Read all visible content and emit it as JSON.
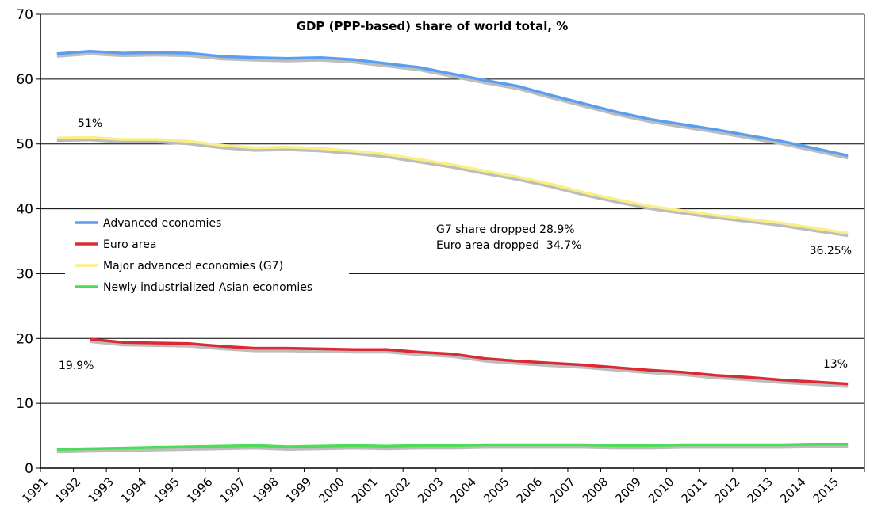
{
  "chart_data": {
    "type": "line",
    "title": "GDP (PPP-based) share of world total, %",
    "xlabel": "",
    "ylabel": "",
    "ylim": [
      0,
      70
    ],
    "yticks": [
      0,
      10,
      20,
      30,
      40,
      50,
      60,
      70
    ],
    "grid": true,
    "legend_position": "left-middle",
    "categories": [
      "1991",
      "1992",
      "1993",
      "1994",
      "1995",
      "1996",
      "1997",
      "1998",
      "1999",
      "2000",
      "2001",
      "2002",
      "2003",
      "2004",
      "2005",
      "2006",
      "2007",
      "2008",
      "2009",
      "2010",
      "2011",
      "2012",
      "2013",
      "2014",
      "2015"
    ],
    "series": [
      {
        "name": "Advanced economies",
        "color": "#5b9ef0",
        "values": [
          63.9,
          64.3,
          64.0,
          64.1,
          64.0,
          63.5,
          63.3,
          63.2,
          63.3,
          63.0,
          62.4,
          61.8,
          60.8,
          59.8,
          58.9,
          57.5,
          56.2,
          54.9,
          53.8,
          53.0,
          52.2,
          51.3,
          50.4,
          49.3,
          48.2
        ]
      },
      {
        "name": "Euro area",
        "color": "#dc2a35",
        "values": [
          null,
          19.9,
          19.4,
          19.3,
          19.2,
          18.8,
          18.5,
          18.5,
          18.4,
          18.3,
          18.3,
          17.9,
          17.6,
          16.9,
          16.5,
          16.2,
          15.9,
          15.5,
          15.1,
          14.8,
          14.3,
          14.0,
          13.6,
          13.3,
          13.0
        ]
      },
      {
        "name": "Major advanced economies (G7)",
        "color": "#fbee84",
        "values": [
          50.9,
          51.0,
          50.7,
          50.7,
          50.4,
          49.8,
          49.4,
          49.5,
          49.3,
          48.9,
          48.4,
          47.6,
          46.8,
          45.8,
          44.9,
          43.8,
          42.5,
          41.4,
          40.4,
          39.7,
          39.0,
          38.4,
          37.8,
          37.0,
          36.25
        ]
      },
      {
        "name": "Newly industrialized Asian economies",
        "color": "#4ddc55",
        "values": [
          2.9,
          3.0,
          3.1,
          3.2,
          3.3,
          3.4,
          3.5,
          3.3,
          3.4,
          3.5,
          3.4,
          3.5,
          3.5,
          3.6,
          3.6,
          3.6,
          3.6,
          3.5,
          3.5,
          3.6,
          3.6,
          3.6,
          3.6,
          3.7,
          3.7
        ]
      }
    ],
    "annotations": [
      {
        "text": "51%",
        "anchor": "G7 1992"
      },
      {
        "text": "19.9%",
        "anchor": "Euro area 1992"
      },
      {
        "text": "36.25%",
        "anchor": "G7 2015"
      },
      {
        "text": "13%",
        "anchor": "Euro area 2015"
      },
      {
        "text": "G7 share dropped 28.9%",
        "anchor": "center"
      },
      {
        "text": "Euro area dropped  34.7%",
        "anchor": "center"
      }
    ]
  }
}
